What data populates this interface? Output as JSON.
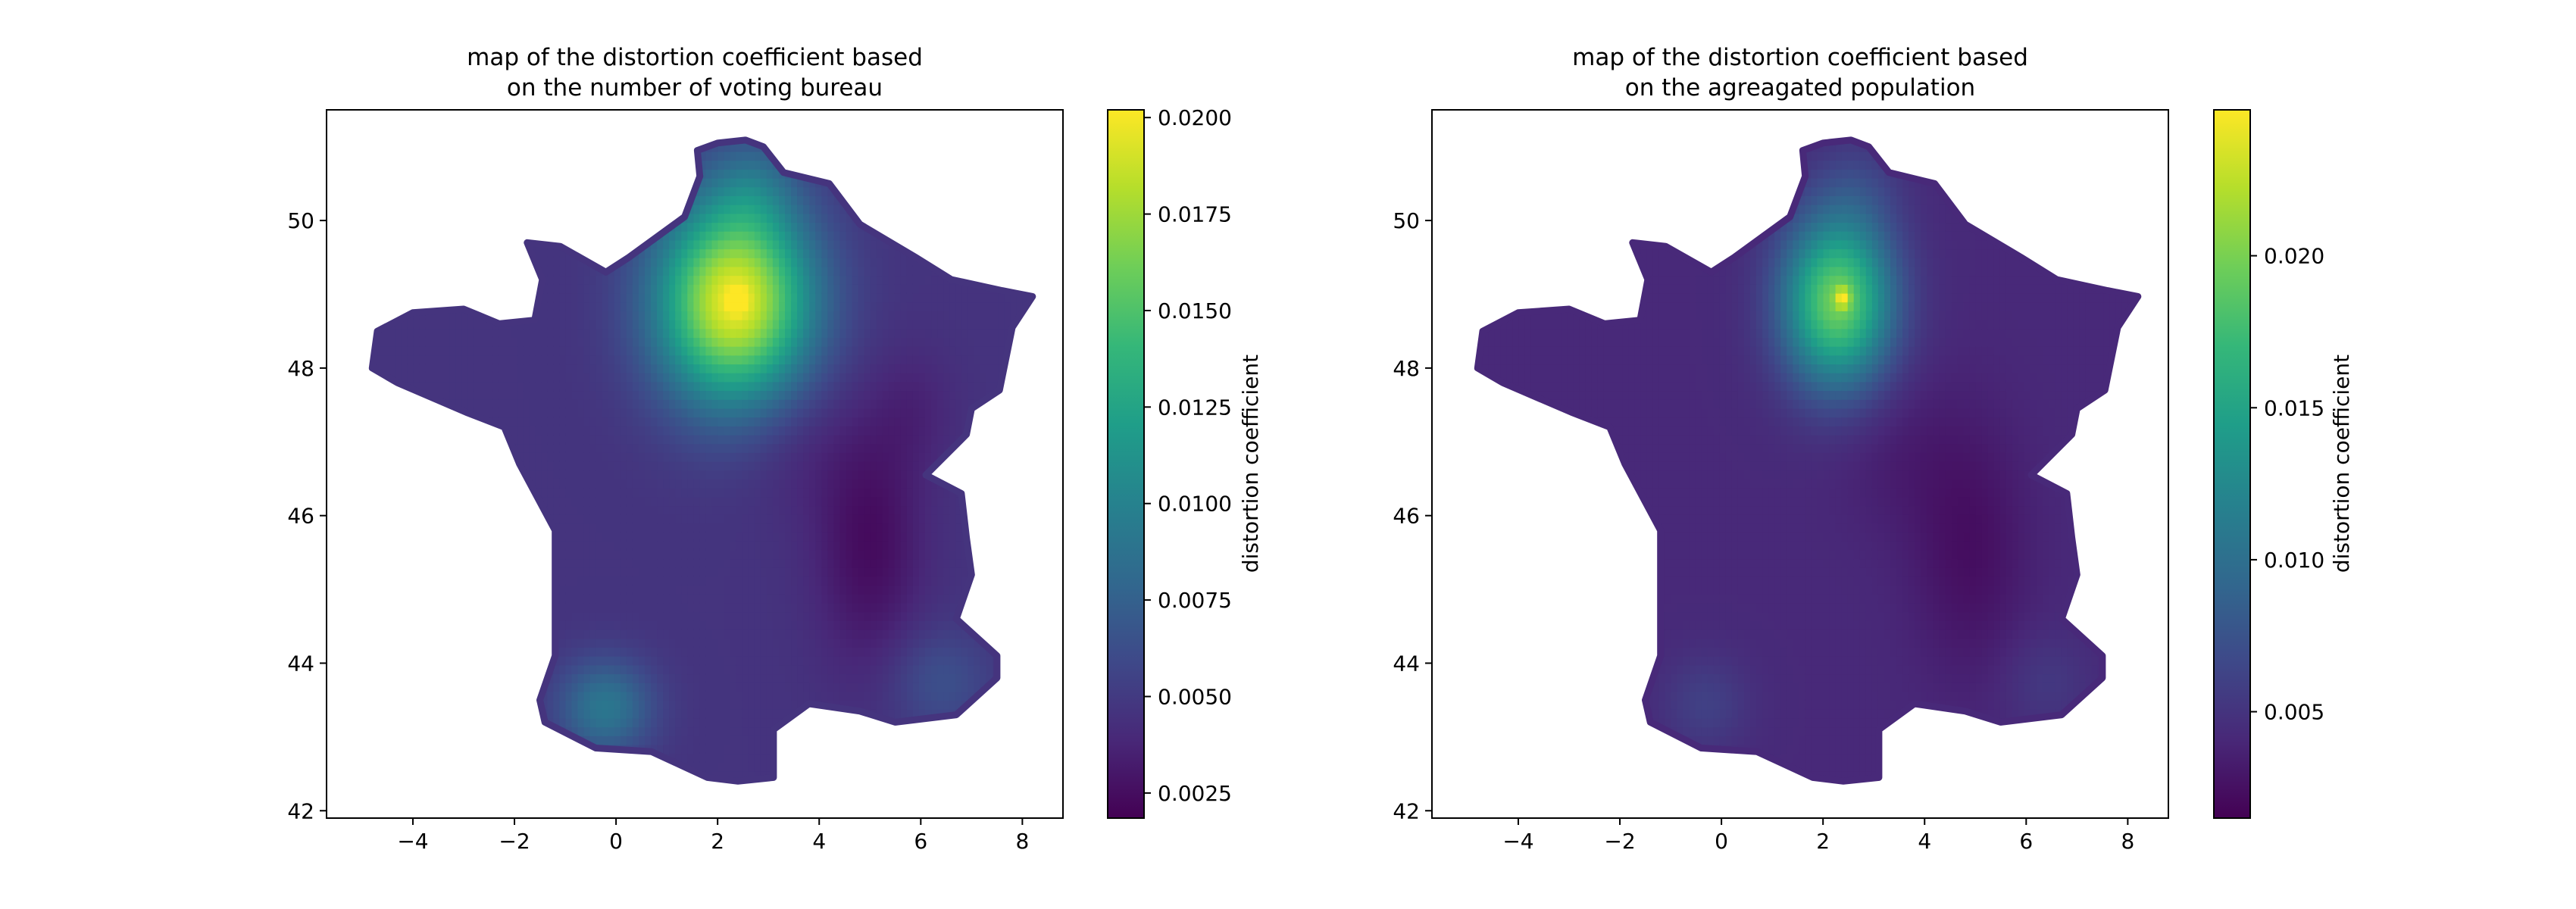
{
  "chart_data": [
    {
      "type": "scatter",
      "title": [
        "map of the distortion coefficient based",
        "on the number of voting bureau"
      ],
      "xlim": [
        -5.7,
        8.8
      ],
      "ylim": [
        41.9,
        51.5
      ],
      "xticks": [
        -4,
        -2,
        0,
        2,
        4,
        6,
        8
      ],
      "yticks": [
        42,
        44,
        46,
        48,
        50
      ],
      "xlabel": "",
      "ylabel": "",
      "grid": false,
      "colormap": "viridis",
      "colorbar": {
        "label": "distortion coefficient",
        "min": 0.00185,
        "max": 0.0202,
        "ticks": [
          0.0025,
          0.005,
          0.0075,
          0.01,
          0.0125,
          0.015,
          0.0175,
          0.02
        ],
        "tick_labels": [
          "0.0025",
          "0.0050",
          "0.0075",
          "0.0100",
          "0.0125",
          "0.0150",
          "0.0175",
          "0.0200"
        ]
      },
      "field": {
        "base": 0.0046,
        "hotspots": [
          {
            "x": 2.35,
            "y": 48.85,
            "value": 0.0152,
            "sx": 1.05,
            "sy": 0.95
          },
          {
            "x": 2.4,
            "y": 48.88,
            "value": 0.0045,
            "sx": 0.12,
            "sy": 0.1
          },
          {
            "x": 2.7,
            "y": 50.4,
            "value": 0.0022,
            "sx": 0.6,
            "sy": 0.5
          },
          {
            "x": -0.2,
            "y": 43.35,
            "value": 0.0045,
            "sx": 0.65,
            "sy": 0.45
          },
          {
            "x": 6.4,
            "y": 43.7,
            "value": 0.0018,
            "sx": 0.7,
            "sy": 0.5
          },
          {
            "x": 5.0,
            "y": 45.6,
            "value": -0.0022,
            "sx": 0.75,
            "sy": 1.2
          },
          {
            "x": 5.9,
            "y": 47.4,
            "value": -0.0008,
            "sx": 0.6,
            "sy": 0.6
          },
          {
            "x": 3.5,
            "y": 47.0,
            "value": -0.0008,
            "sx": 0.8,
            "sy": 0.7
          }
        ]
      }
    },
    {
      "type": "scatter",
      "title": [
        "map of the distortion coefficient based",
        "on the agreagated population"
      ],
      "xlim": [
        -5.7,
        8.8
      ],
      "ylim": [
        41.9,
        51.5
      ],
      "xticks": [
        -4,
        -2,
        0,
        2,
        4,
        6,
        8
      ],
      "yticks": [
        42,
        44,
        46,
        48,
        50
      ],
      "xlabel": "",
      "ylabel": "",
      "grid": false,
      "colormap": "viridis",
      "colorbar": {
        "label": "distortion coefficient",
        "min": 0.0015,
        "max": 0.0248,
        "ticks": [
          0.005,
          0.01,
          0.015,
          0.02
        ],
        "tick_labels": [
          "0.005",
          "0.010",
          "0.015",
          "0.020"
        ]
      },
      "field": {
        "base": 0.0042,
        "hotspots": [
          {
            "x": 2.3,
            "y": 48.85,
            "value": 0.0155,
            "sx": 0.75,
            "sy": 0.8
          },
          {
            "x": 2.4,
            "y": 48.9,
            "value": 0.006,
            "sx": 0.1,
            "sy": 0.1
          },
          {
            "x": 2.7,
            "y": 50.4,
            "value": 0.0015,
            "sx": 0.6,
            "sy": 0.5
          },
          {
            "x": -0.3,
            "y": 43.4,
            "value": 0.0018,
            "sx": 0.6,
            "sy": 0.45
          },
          {
            "x": 6.4,
            "y": 43.7,
            "value": 0.0012,
            "sx": 0.6,
            "sy": 0.45
          },
          {
            "x": 4.9,
            "y": 45.5,
            "value": -0.0018,
            "sx": 0.8,
            "sy": 1.2
          },
          {
            "x": 3.5,
            "y": 46.8,
            "value": -0.0008,
            "sx": 0.9,
            "sy": 0.8
          }
        ]
      }
    }
  ],
  "outline": [
    [
      2.55,
      51.09
    ],
    [
      2.9,
      51.0
    ],
    [
      3.3,
      50.65
    ],
    [
      4.2,
      50.5
    ],
    [
      4.8,
      49.95
    ],
    [
      5.9,
      49.5
    ],
    [
      6.6,
      49.2
    ],
    [
      7.6,
      49.05
    ],
    [
      8.2,
      48.97
    ],
    [
      7.8,
      48.55
    ],
    [
      7.55,
      47.7
    ],
    [
      7.0,
      47.45
    ],
    [
      6.9,
      47.1
    ],
    [
      6.1,
      46.55
    ],
    [
      6.8,
      46.3
    ],
    [
      6.9,
      45.7
    ],
    [
      7.0,
      45.2
    ],
    [
      6.7,
      44.6
    ],
    [
      7.5,
      44.1
    ],
    [
      7.5,
      43.8
    ],
    [
      6.7,
      43.3
    ],
    [
      5.5,
      43.2
    ],
    [
      4.8,
      43.35
    ],
    [
      3.8,
      43.45
    ],
    [
      3.1,
      43.1
    ],
    [
      3.1,
      42.45
    ],
    [
      2.4,
      42.4
    ],
    [
      1.8,
      42.45
    ],
    [
      0.7,
      42.8
    ],
    [
      -0.4,
      42.85
    ],
    [
      -1.4,
      43.2
    ],
    [
      -1.5,
      43.5
    ],
    [
      -1.2,
      44.1
    ],
    [
      -1.2,
      45.0
    ],
    [
      -1.2,
      45.8
    ],
    [
      -1.9,
      46.7
    ],
    [
      -2.2,
      47.2
    ],
    [
      -2.95,
      47.4
    ],
    [
      -4.3,
      47.8
    ],
    [
      -4.8,
      48.0
    ],
    [
      -4.7,
      48.5
    ],
    [
      -4.0,
      48.75
    ],
    [
      -3.0,
      48.8
    ],
    [
      -2.3,
      48.6
    ],
    [
      -1.6,
      48.65
    ],
    [
      -1.45,
      49.2
    ],
    [
      -1.75,
      49.7
    ],
    [
      -1.1,
      49.65
    ],
    [
      -0.2,
      49.3
    ],
    [
      0.25,
      49.5
    ],
    [
      1.35,
      50.05
    ],
    [
      1.65,
      50.6
    ],
    [
      1.6,
      50.95
    ],
    [
      2.0,
      51.05
    ]
  ],
  "colormap_stops": [
    "#440154",
    "#482878",
    "#3e4989",
    "#31688e",
    "#26828e",
    "#1f9e89",
    "#35b779",
    "#6ece58",
    "#b5de2b",
    "#fde725"
  ]
}
